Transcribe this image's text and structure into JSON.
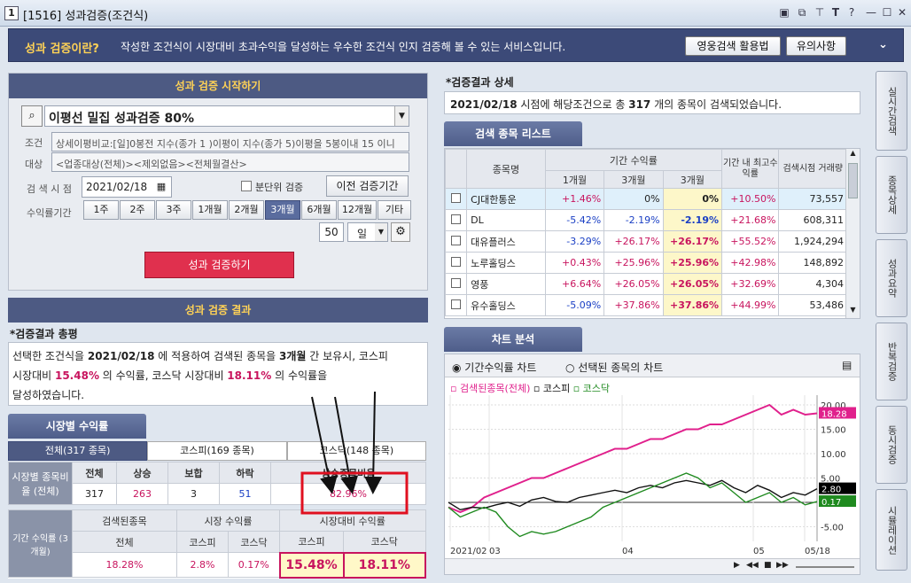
{
  "window": {
    "id": "1",
    "title": "[1516] 성과검증(조건식)"
  },
  "banner": {
    "question": "성과 검증이란?",
    "desc": "작성한 조건식이 시장대비 초과수익을 달성하는 우수한 조건식 인지 검증해 볼 수 있는 서비스입니다.",
    "btn_guide": "영웅검색 활용법",
    "btn_notice": "유의사항"
  },
  "start": {
    "header": "성과 검증 시작하기",
    "formula": "이평선 밀집 성과검증 80%",
    "cond_label": "조건",
    "cond_text": "상세이평비교:[일]0봉전 지수(종가 1 )이평이 지수(종가 5)이평을 5봉이내 15 이니",
    "target_label": "대상",
    "target_text": "<업종대상(전체)><제외없음><전체월결산>",
    "date_label": "검 색 시 점",
    "date_value": "2021/02/18",
    "split_label": "분단위 검증",
    "prev_btn": "이전 검증기간",
    "period_label": "수익률기간",
    "periods": [
      "1주",
      "2주",
      "3주",
      "1개월",
      "2개월",
      "3개월",
      "6개월",
      "12개월",
      "기타"
    ],
    "active_period": "3개월",
    "count_value": "50",
    "unit_value": "일",
    "run_btn": "성과 검증하기"
  },
  "result": {
    "header": "성과 검증 결과",
    "summary_title": "*검증결과 총평",
    "s1": "선택한 조건식을 ",
    "s_date": "2021/02/18",
    "s2": " 에 적용하여 검색된 종목을 ",
    "s_period": "3개월",
    "s3": " 간 보유시, 코스피",
    "s4": "시장대비 ",
    "s_kospi": "15.48%",
    "s5": " 의 수익률, 코스닥 시장대비 ",
    "s_kosdaq": "18.11%",
    "s6": " 의 수익률을",
    "s7": "달성하였습니다."
  },
  "market": {
    "tab_header": "시장별 수익률",
    "subtabs": [
      "전체(317 종목)",
      "코스피(169 종목)",
      "코스닥(148 종목)"
    ],
    "row1_label": "시장별 종목비율 (전체)",
    "cols": [
      "전체",
      "상승",
      "보합",
      "하락",
      "상승종목비율"
    ],
    "vals": [
      "317",
      "263",
      "3",
      "51",
      "82.96%"
    ],
    "row2_label": "기간 수익률 (3개월)",
    "h_searched": "검색된종목",
    "h_market": "시장 수익률",
    "h_excess": "시장대비 수익률",
    "sub_all": "전체",
    "sub_kospi": "코스피",
    "sub_kosdaq": "코스닥",
    "r_all": "18.28%",
    "r_kospi": "2.8%",
    "r_kosdaq": "0.17%",
    "x_kospi": "15.48%",
    "x_kosdaq": "18.11%"
  },
  "detail": {
    "title": "*검증결과 상세",
    "d1": "2021/02/18",
    "d2": " 시점에 해당조건으로 총 ",
    "d_count": "317",
    "d3": " 개의 종목이 검색되었습니다."
  },
  "stocklist": {
    "header": "검색 종목 리스트",
    "h_name": "종목명",
    "h_period": "기간 수익률",
    "h_1m": "1개월",
    "h_3m_a": "3개월",
    "h_3m": "3개월",
    "h_max": "기간 내 최고수익률",
    "h_vol": "검색시점 거래량",
    "rows": [
      {
        "name": "CJ대한통운",
        "m1": "+1.46%",
        "m3a": "0%",
        "m3": "0%",
        "max": "+10.50%",
        "vol": "73,557"
      },
      {
        "name": "DL",
        "m1": "-5.42%",
        "m3a": "-2.19%",
        "m3": "-2.19%",
        "max": "+21.68%",
        "vol": "608,311"
      },
      {
        "name": "대유플러스",
        "m1": "-3.29%",
        "m3a": "+26.17%",
        "m3": "+26.17%",
        "max": "+55.52%",
        "vol": "1,924,294"
      },
      {
        "name": "노루홀딩스",
        "m1": "+0.43%",
        "m3a": "+25.96%",
        "m3": "+25.96%",
        "max": "+42.98%",
        "vol": "148,892"
      },
      {
        "name": "영풍",
        "m1": "+6.64%",
        "m3a": "+26.05%",
        "m3": "+26.05%",
        "max": "+32.69%",
        "vol": "4,304"
      },
      {
        "name": "유수홀딩스",
        "m1": "-5.09%",
        "m3a": "+37.86%",
        "m3": "+37.86%",
        "max": "+44.99%",
        "vol": "53,486"
      }
    ]
  },
  "chart": {
    "header": "차트 분석",
    "radio1": "기간수익률 차트",
    "radio2": "선택된 종목의 차트",
    "legend": [
      "검색된종목(전체)",
      "코스피",
      "코스닥"
    ],
    "colors": {
      "searched": "#e0208c",
      "kospi": "#111111",
      "kosdaq": "#1f8a1f"
    },
    "y_ticks": [
      "20.00",
      "15.00",
      "10.00",
      "5.00",
      "0",
      "-5.00"
    ],
    "x_ticks": [
      "2021/02",
      "03",
      "04",
      "05",
      "05/18"
    ],
    "last_values": [
      "18.28",
      "2.80",
      "0.17"
    ]
  },
  "chart_data": {
    "type": "line",
    "ylim": [
      -8,
      22
    ],
    "xlabels": [
      "2021/02",
      "03",
      "04",
      "05",
      "05/18"
    ],
    "series": [
      {
        "name": "검색된종목(전체)",
        "color": "#e0208c",
        "values": [
          -1,
          -2,
          -1,
          1,
          2,
          3,
          4,
          5,
          5,
          6,
          7,
          8,
          9,
          10,
          11,
          11,
          12,
          13,
          13,
          14,
          15,
          15,
          16,
          16,
          17,
          18,
          19,
          20,
          18,
          19,
          18,
          18.28
        ]
      },
      {
        "name": "코스피",
        "color": "#111111",
        "values": [
          0,
          -1.5,
          -1,
          -1.2,
          -0.5,
          0,
          -0.8,
          0.5,
          1,
          0.2,
          0,
          1,
          1.5,
          2,
          2.5,
          2,
          3,
          3.5,
          3,
          4,
          4.5,
          4,
          3.5,
          4.5,
          3,
          2,
          3.5,
          2.5,
          1,
          2,
          1.5,
          2.8
        ]
      },
      {
        "name": "코스닥",
        "color": "#1f8a1f",
        "values": [
          -1,
          -3,
          -2,
          -1,
          -2,
          -5,
          -7,
          -6,
          -6.5,
          -6,
          -5,
          -4,
          -3,
          -1,
          0,
          1,
          2,
          3,
          4,
          5,
          6,
          5,
          3,
          4,
          2,
          0,
          1,
          2,
          0,
          1,
          -0.5,
          0.17
        ]
      }
    ]
  },
  "right_tabs": [
    "실시간검색",
    "종목상세",
    "성과요약",
    "반복검증",
    "동시검증",
    "시뮬레이션"
  ]
}
